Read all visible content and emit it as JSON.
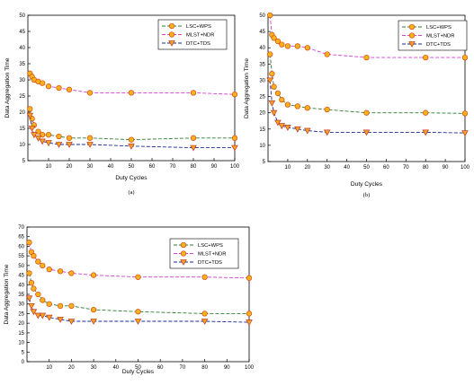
{
  "chart_data": [
    {
      "type": "line",
      "caption": "(a)",
      "xlabel": "Duty Cycles",
      "ylabel": "Data Aggregation Time",
      "xlim": [
        0,
        100
      ],
      "ylim": [
        5,
        50
      ],
      "xticks": [
        10,
        20,
        30,
        40,
        50,
        60,
        70,
        80,
        90,
        100
      ],
      "yticks": [
        5,
        10,
        15,
        20,
        25,
        30,
        35,
        40,
        45,
        50
      ],
      "grid": false,
      "legend": "top-right",
      "series": [
        {
          "name": "LSC+WPS",
          "color": "#2e7d32",
          "marker": "circle",
          "x": [
            1,
            2,
            3,
            5,
            7,
            10,
            15,
            20,
            30,
            50,
            80,
            100
          ],
          "y": [
            21,
            18,
            16,
            14,
            13,
            13,
            12.5,
            12,
            12,
            11.5,
            12,
            12
          ]
        },
        {
          "name": "MLST+NDR",
          "color": "#d63fd6",
          "marker": "circle",
          "x": [
            1,
            2,
            3,
            5,
            7,
            10,
            15,
            20,
            30,
            50,
            80,
            100
          ],
          "y": [
            32,
            31,
            30,
            29.5,
            29,
            28,
            27.5,
            27,
            26,
            26,
            26,
            25.5
          ]
        },
        {
          "name": "DTC+TDS",
          "color": "#1a2a9a",
          "marker": "triangle",
          "x": [
            1,
            2,
            3,
            5,
            7,
            10,
            15,
            20,
            30,
            50,
            80,
            100
          ],
          "y": [
            19,
            15,
            13,
            12,
            11,
            10.5,
            10,
            10,
            10,
            9.5,
            9,
            9
          ]
        }
      ]
    },
    {
      "type": "line",
      "caption": "(b)",
      "xlabel": "Duty Cycles",
      "ylabel": "Data Aggregation Time",
      "xlim": [
        0,
        100
      ],
      "ylim": [
        5,
        50
      ],
      "xticks": [
        10,
        20,
        30,
        40,
        50,
        60,
        70,
        80,
        90,
        100
      ],
      "yticks": [
        5,
        10,
        15,
        20,
        25,
        30,
        35,
        40,
        45,
        50
      ],
      "grid": false,
      "legend": "top-right",
      "series": [
        {
          "name": "LSC+WPS",
          "color": "#2e7d32",
          "marker": "circle",
          "x": [
            1,
            2,
            3,
            5,
            7,
            10,
            15,
            20,
            30,
            50,
            80,
            100
          ],
          "y": [
            38,
            32,
            28,
            26,
            24,
            22.5,
            22,
            21.5,
            21,
            20,
            20,
            19.8
          ]
        },
        {
          "name": "MLST+NDR",
          "color": "#d63fd6",
          "marker": "circle",
          "x": [
            1,
            2,
            3,
            5,
            7,
            10,
            15,
            20,
            30,
            50,
            80,
            100
          ],
          "y": [
            50,
            44,
            43,
            42,
            41,
            40.5,
            40.5,
            40,
            38,
            37,
            37,
            37
          ]
        },
        {
          "name": "DTC+TDS",
          "color": "#1a2a9a",
          "marker": "triangle",
          "x": [
            1,
            2,
            3,
            5,
            7,
            10,
            15,
            20,
            30,
            50,
            80,
            100
          ],
          "y": [
            30,
            23,
            20,
            17,
            16,
            15.5,
            15,
            14.5,
            14,
            14,
            14,
            13.8
          ]
        }
      ]
    },
    {
      "type": "line",
      "caption": "",
      "xlabel": "Duty Cycles",
      "ylabel": "Data Aggregation Time",
      "xlim": [
        0,
        100
      ],
      "ylim": [
        0,
        70
      ],
      "xticks": [
        10,
        20,
        30,
        40,
        50,
        60,
        70,
        80,
        90,
        100
      ],
      "yticks": [
        0,
        5,
        10,
        15,
        20,
        25,
        30,
        35,
        40,
        45,
        50,
        55,
        60,
        65,
        70
      ],
      "grid": false,
      "legend": "top-right",
      "series": [
        {
          "name": "LSC+WPS",
          "color": "#2e7d32",
          "marker": "circle",
          "x": [
            1,
            2,
            3,
            5,
            7,
            10,
            15,
            20,
            30,
            50,
            80,
            100
          ],
          "y": [
            46,
            41,
            38,
            35,
            32,
            30,
            29,
            29,
            27,
            26,
            25,
            25
          ]
        },
        {
          "name": "MLST+NDR",
          "color": "#d63fd6",
          "marker": "circle",
          "x": [
            1,
            2,
            3,
            5,
            7,
            10,
            15,
            20,
            30,
            50,
            80,
            100
          ],
          "y": [
            62,
            57,
            55,
            52,
            50,
            48,
            47,
            46,
            45,
            44,
            44,
            43.5
          ]
        },
        {
          "name": "DTC+TDS",
          "color": "#1a2a9a",
          "marker": "triangle",
          "x": [
            1,
            2,
            3,
            5,
            7,
            10,
            15,
            20,
            30,
            50,
            80,
            100
          ],
          "y": [
            33,
            29,
            26,
            24,
            24,
            23,
            22,
            21,
            21,
            21,
            21,
            20.5
          ]
        }
      ]
    }
  ]
}
